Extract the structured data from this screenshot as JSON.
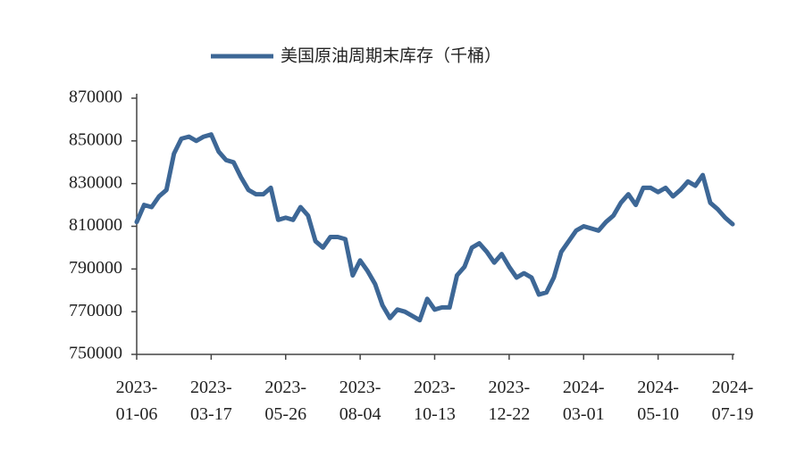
{
  "chart_data": {
    "type": "line",
    "series": [
      {
        "name": "美国原油周期末库存（千桶）",
        "color": "#3d6796",
        "values": [
          812000,
          820000,
          819000,
          824000,
          827000,
          844000,
          851000,
          852000,
          850000,
          852000,
          853000,
          845000,
          841000,
          840000,
          833000,
          827000,
          825000,
          825000,
          828000,
          813000,
          814000,
          813000,
          819000,
          815000,
          803000,
          800000,
          805000,
          805000,
          804000,
          787000,
          794000,
          789000,
          783000,
          773000,
          767000,
          771000,
          770000,
          768000,
          766000,
          776000,
          771000,
          772000,
          772000,
          787000,
          791000,
          800000,
          802000,
          798000,
          793000,
          797000,
          791000,
          786000,
          788000,
          786000,
          778000,
          779000,
          786000,
          798000,
          803000,
          808000,
          810000,
          809000,
          808000,
          812000,
          815000,
          821000,
          825000,
          820000,
          828000,
          828000,
          826000,
          828000,
          824000,
          827000,
          831000,
          829000,
          834000,
          821000,
          818000,
          814000,
          811000
        ]
      }
    ],
    "categories": [
      "2023-01-06",
      null,
      null,
      null,
      null,
      null,
      null,
      null,
      null,
      null,
      "2023-03-17",
      null,
      null,
      null,
      null,
      null,
      null,
      null,
      null,
      null,
      "2023-05-26",
      null,
      null,
      null,
      null,
      null,
      null,
      null,
      null,
      null,
      "2023-08-04",
      null,
      null,
      null,
      null,
      null,
      null,
      null,
      null,
      null,
      "2023-10-13",
      null,
      null,
      null,
      null,
      null,
      null,
      null,
      null,
      null,
      "2023-12-22",
      null,
      null,
      null,
      null,
      null,
      null,
      null,
      null,
      null,
      "2024-03-01",
      null,
      null,
      null,
      null,
      null,
      null,
      null,
      null,
      null,
      "2024-05-10",
      null,
      null,
      null,
      null,
      null,
      null,
      null,
      null,
      null,
      "2024-07-19"
    ],
    "ylim": [
      750000,
      870000
    ],
    "yticks": [
      750000,
      770000,
      790000,
      810000,
      830000,
      850000,
      870000
    ],
    "grid": false
  }
}
